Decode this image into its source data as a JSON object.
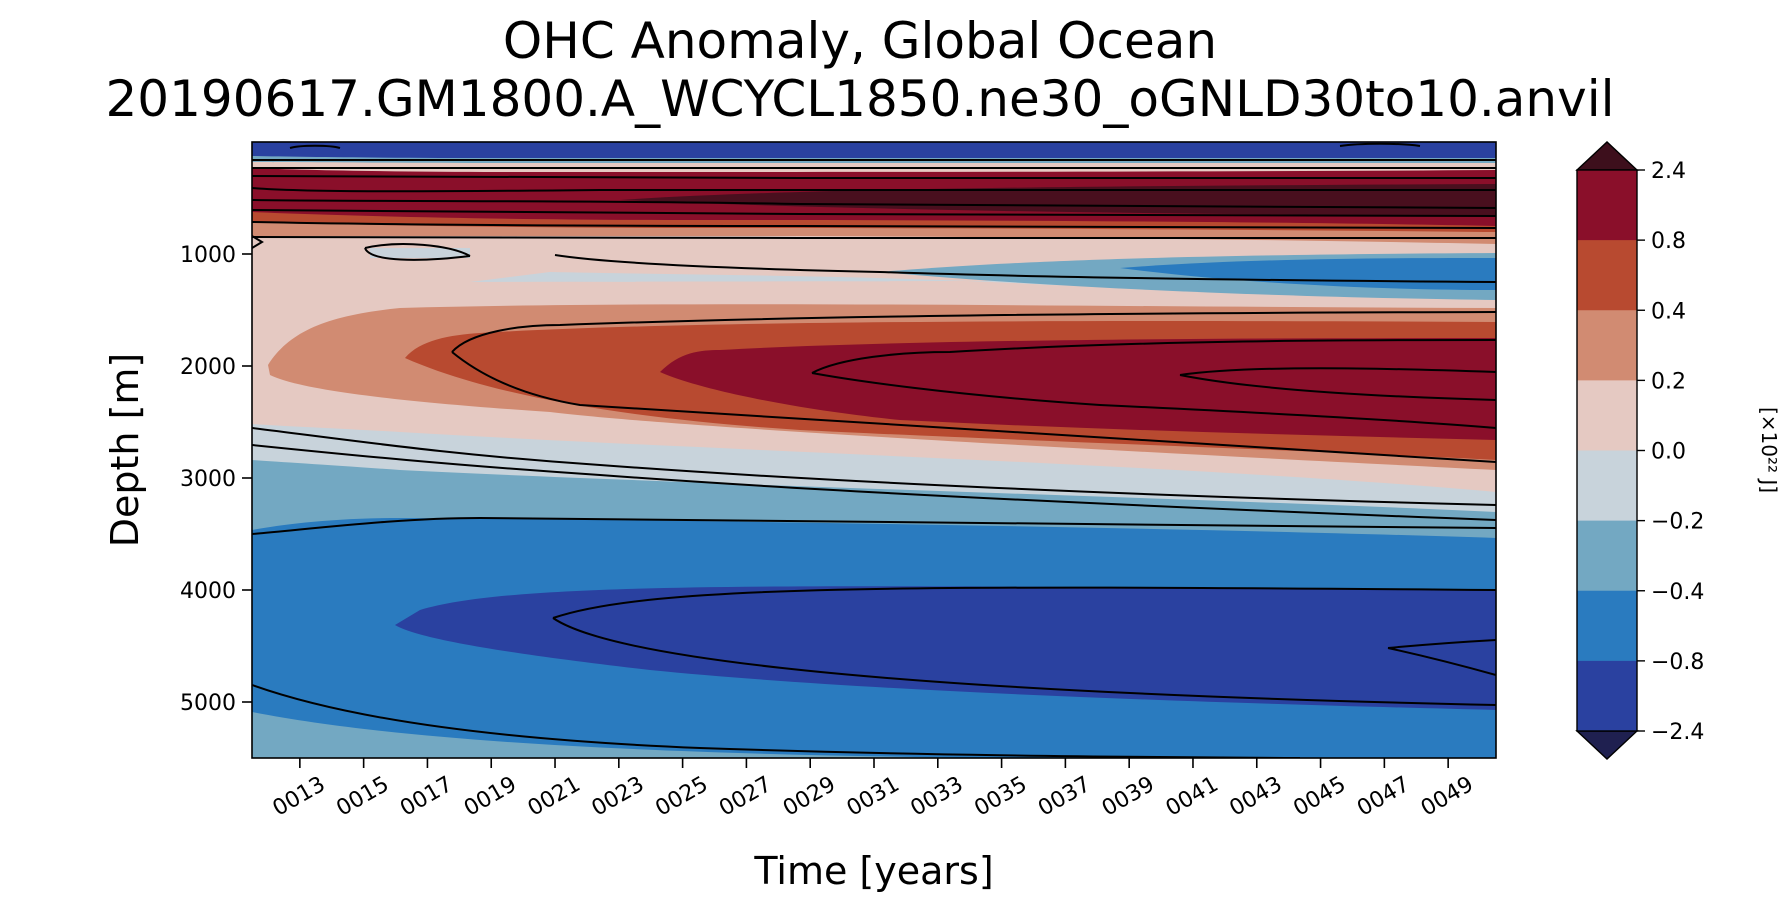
{
  "title": "OHC Anomaly, Global Ocean",
  "subtitle": "20190617.GM1800.A_WCYCL1850.ne30_oGNLD30to10.anvil",
  "chart_data": {
    "type": "heatmap",
    "title": "OHC Anomaly, Global Ocean",
    "subtitle": "20190617.GM1800.A_WCYCL1850.ne30_oGNLD30to10.anvil",
    "xlabel": "Time [years]",
    "ylabel": "Depth [m]",
    "x_ticks": [
      "0013",
      "0015",
      "0017",
      "0019",
      "0021",
      "0023",
      "0025",
      "0027",
      "0029",
      "0031",
      "0033",
      "0035",
      "0037",
      "0039",
      "0041",
      "0043",
      "0045",
      "0047",
      "0049"
    ],
    "y_ticks": [
      "1000",
      "2000",
      "3000",
      "4000",
      "5000"
    ],
    "x_range": [
      11.5,
      50.5
    ],
    "y_range": [
      0,
      5500
    ],
    "y_inverted": true,
    "colorbar": {
      "label": "[×10²² J]",
      "ticks": [
        "2.4",
        "0.8",
        "0.4",
        "0.2",
        "0.0",
        "−0.2",
        "−0.4",
        "−0.8",
        "−2.4"
      ],
      "levels": [
        -2.4,
        -0.8,
        -0.4,
        -0.2,
        0.0,
        0.2,
        0.4,
        0.8,
        2.4
      ],
      "colors": [
        "#2a41a0",
        "#2a7bbf",
        "#73a8c2",
        "#c8d3db",
        "#e5c9c2",
        "#d18b72",
        "#b84a30",
        "#8a0f2a"
      ],
      "extend_colors": {
        "low": "#1f2050",
        "high": "#3d0f1c"
      }
    },
    "series": [
      {
        "name": "",
        "values": [
          [
            11.5,
            50.5
          ],
          [
            0,
            5500
          ]
        ]
      }
    ]
  }
}
